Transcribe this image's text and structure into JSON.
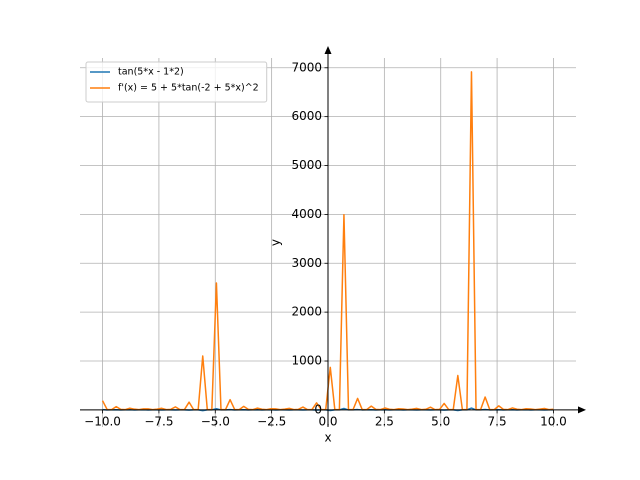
{
  "chart_data": {
    "type": "line",
    "x_label": "x",
    "y_label": "y",
    "x": [
      -10,
      -9.798,
      -9.596,
      -9.394,
      -9.192,
      -8.99,
      -8.788,
      -8.586,
      -8.384,
      -8.182,
      -7.98,
      -7.778,
      -7.576,
      -7.374,
      -7.172,
      -6.97,
      -6.768,
      -6.566,
      -6.364,
      -6.162,
      -5.96,
      -5.758,
      -5.556,
      -5.354,
      -5.152,
      -4.949,
      -4.747,
      -4.545,
      -4.343,
      -4.141,
      -3.939,
      -3.737,
      -3.535,
      -3.333,
      -3.131,
      -2.929,
      -2.727,
      -2.525,
      -2.323,
      -2.121,
      -1.919,
      -1.717,
      -1.515,
      -1.313,
      -1.111,
      -0.909,
      -0.707,
      -0.505,
      -0.303,
      -0.101,
      0.101,
      0.303,
      0.505,
      0.707,
      0.909,
      1.111,
      1.313,
      1.515,
      1.717,
      1.919,
      2.121,
      2.323,
      2.525,
      2.727,
      2.929,
      3.131,
      3.333,
      3.535,
      3.737,
      3.939,
      4.141,
      4.343,
      4.545,
      4.747,
      4.949,
      5.152,
      5.354,
      5.556,
      5.758,
      5.96,
      6.162,
      6.364,
      6.566,
      6.768,
      6.97,
      7.172,
      7.374,
      7.576,
      7.778,
      7.98,
      8.182,
      8.384,
      8.586,
      8.788,
      8.99,
      9.192,
      9.394,
      9.596,
      9.798,
      10
    ],
    "series": [
      {
        "name": "tan(5*x - 1*2)",
        "color": "#1f77b4",
        "values": [
          6.07,
          -0.881,
          0.294,
          3.54,
          -1.11,
          0.176,
          2.46,
          -1.39,
          0.063,
          1.84,
          -1.78,
          -0.048,
          1.43,
          -2.36,
          -0.161,
          1.14,
          -3.35,
          -0.278,
          0.911,
          -5.54,
          -0.402,
          0.727,
          -14.8,
          -0.537,
          0.568,
          22.8,
          -0.691,
          0.429,
          6.39,
          -0.87,
          0.303,
          3.66,
          -1.09,
          0.185,
          2.52,
          -1.37,
          0.072,
          1.88,
          -1.74,
          -0.04,
          1.46,
          -2.3,
          -0.152,
          1.16,
          -3.25,
          -0.268,
          0.927,
          -5.27,
          -0.392,
          0.739,
          -13.1,
          -0.527,
          0.58,
          28.2,
          -0.679,
          0.439,
          6.77,
          -0.855,
          0.312,
          3.81,
          -1.07,
          0.194,
          2.58,
          -1.34,
          0.08,
          1.92,
          -1.71,
          -0.031,
          1.49,
          -2.25,
          -0.143,
          1.18,
          -3.15,
          -0.259,
          0.943,
          -5.04,
          -0.382,
          0.751,
          -11.8,
          -0.516,
          0.589,
          37.2,
          -0.667,
          0.449,
          7.2,
          -0.841,
          0.322,
          3.96,
          -1.05,
          0.203,
          2.66,
          -1.32,
          0.089,
          1.96,
          -1.67,
          -0.023,
          1.52,
          -2.2,
          -0.135,
          1.2
        ]
      },
      {
        "name": "f'(x) = 5 + 5*tan(-2 + 5*x)^2",
        "color": "#ff7f0e",
        "values": [
          188.2,
          8.92,
          5.43,
          67.8,
          11.1,
          5.15,
          35.2,
          14.7,
          5.02,
          21.9,
          20.8,
          5.01,
          15.3,
          32.8,
          5.13,
          11.5,
          61.2,
          5.39,
          9.16,
          158,
          5.81,
          7.64,
          1102,
          6.45,
          6.61,
          2596,
          7.39,
          5.92,
          209,
          8.78,
          5.46,
          72.1,
          10.9,
          5.17,
          36.8,
          14.3,
          5.03,
          22.7,
          20.2,
          5.01,
          15.7,
          31.4,
          5.12,
          11.7,
          57.8,
          5.36,
          9.3,
          144,
          5.77,
          7.73,
          870,
          6.39,
          6.68,
          3993,
          7.3,
          5.97,
          234,
          8.65,
          5.49,
          76.8,
          10.7,
          5.19,
          38.4,
          14.0,
          5.03,
          23.4,
          19.6,
          5.0,
          16.1,
          30.2,
          5.1,
          12.0,
          54.7,
          5.34,
          9.45,
          132,
          5.73,
          7.83,
          703,
          6.33,
          6.75,
          6916,
          7.22,
          6.01,
          263,
          8.53,
          5.52,
          82.0,
          10.5,
          5.2,
          40.1,
          13.7,
          5.04,
          24.2,
          19.0,
          5.0,
          16.5,
          29.1,
          5.09,
          12.2
        ]
      }
    ],
    "xlim": [
      -11,
      11
    ],
    "ylim": [
      -350,
      7200
    ],
    "xticks": [
      {
        "value": -10,
        "label": "−10.0"
      },
      {
        "value": -7.5,
        "label": "−7.5"
      },
      {
        "value": -5,
        "label": "−5.0"
      },
      {
        "value": -2.5,
        "label": "−2.5"
      },
      {
        "value": 0,
        "label": "0.0"
      },
      {
        "value": 2.5,
        "label": "2.5"
      },
      {
        "value": 5,
        "label": "5.0"
      },
      {
        "value": 7.5,
        "label": "7.5"
      },
      {
        "value": 10,
        "label": "10.0"
      }
    ],
    "yticks": [
      0,
      1000,
      2000,
      3000,
      4000,
      5000,
      6000,
      7000
    ],
    "grid": true,
    "legend": "upper-left"
  }
}
